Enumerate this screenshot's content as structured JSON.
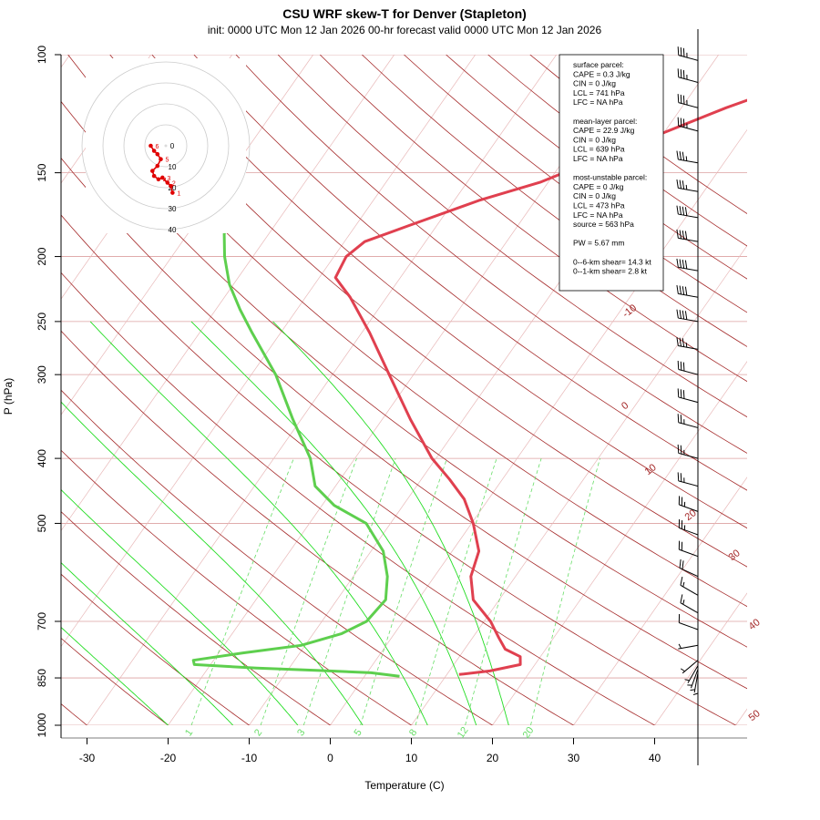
{
  "title": "CSU WRF skew-T for Denver (Stapleton)",
  "subtitle": "init: 0000 UTC Mon 12 Jan 2026    00-hr forecast valid 0000 UTC Mon 12 Jan 2026",
  "colors": {
    "temperature": "#e0404f",
    "dewpoint": "#5ecf4e",
    "dry_adiabat": "#a52a2a",
    "isotherm": "#e8b8b8",
    "isobar": "#dca0a0",
    "moist_adiabat": "#22dd22",
    "mixing_ratio": "#66dd66",
    "hodograph": "#e00000",
    "ring": "#cccccc"
  },
  "chart_data": {
    "type": "skew-t",
    "xlabel": "Temperature (C)",
    "ylabel": "P (hPa)",
    "x_ticks": [
      -30,
      -20,
      -10,
      0,
      10,
      20,
      30,
      40
    ],
    "y_ticks": [
      100,
      150,
      200,
      250,
      300,
      400,
      500,
      700,
      850,
      1000
    ],
    "xlim": [
      -33,
      45
    ],
    "ylim": [
      1000,
      100
    ],
    "isotherm_labels": [
      "-10",
      "0",
      "10",
      "20",
      "30",
      "40",
      "50"
    ],
    "mixing_ratio_labels": [
      "1",
      "2",
      "3",
      "5",
      "8",
      "12",
      "20"
    ],
    "temperature_profile": [
      {
        "p": 840,
        "t": 11.5
      },
      {
        "p": 830,
        "t": 15.0
      },
      {
        "p": 812,
        "t": 18.2
      },
      {
        "p": 790,
        "t": 17.5
      },
      {
        "p": 770,
        "t": 15.0
      },
      {
        "p": 740,
        "t": 13.2
      },
      {
        "p": 700,
        "t": 10.8
      },
      {
        "p": 650,
        "t": 6.8
      },
      {
        "p": 600,
        "t": 4.5
      },
      {
        "p": 550,
        "t": 3.3
      },
      {
        "p": 500,
        "t": 0.2
      },
      {
        "p": 460,
        "t": -3.0
      },
      {
        "p": 430,
        "t": -6.5
      },
      {
        "p": 400,
        "t": -10.5
      },
      {
        "p": 350,
        "t": -16.5
      },
      {
        "p": 300,
        "t": -23.0
      },
      {
        "p": 260,
        "t": -29.0
      },
      {
        "p": 230,
        "t": -34.5
      },
      {
        "p": 215,
        "t": -38.0
      },
      {
        "p": 200,
        "t": -38.5
      },
      {
        "p": 190,
        "t": -37.5
      },
      {
        "p": 180,
        "t": -33.5
      },
      {
        "p": 165,
        "t": -27.0
      },
      {
        "p": 155,
        "t": -21.0
      },
      {
        "p": 140,
        "t": -14.5
      },
      {
        "p": 120,
        "t": -4.5
      },
      {
        "p": 108,
        "t": 3.5
      }
    ],
    "dewpoint_profile": [
      {
        "p": 845,
        "t": 4.3
      },
      {
        "p": 835,
        "t": 0.5
      },
      {
        "p": 828,
        "t": -6.5
      },
      {
        "p": 822,
        "t": -14.0
      },
      {
        "p": 812,
        "t": -22.0
      },
      {
        "p": 800,
        "t": -22.5
      },
      {
        "p": 780,
        "t": -17.0
      },
      {
        "p": 760,
        "t": -10.5
      },
      {
        "p": 730,
        "t": -6.5
      },
      {
        "p": 700,
        "t": -4.5
      },
      {
        "p": 650,
        "t": -4.0
      },
      {
        "p": 600,
        "t": -5.8
      },
      {
        "p": 550,
        "t": -8.5
      },
      {
        "p": 500,
        "t": -13.0
      },
      {
        "p": 470,
        "t": -18.5
      },
      {
        "p": 440,
        "t": -22.5
      },
      {
        "p": 400,
        "t": -25.5
      },
      {
        "p": 350,
        "t": -31.0
      },
      {
        "p": 300,
        "t": -37.0
      },
      {
        "p": 260,
        "t": -43.5
      },
      {
        "p": 240,
        "t": -47.0
      },
      {
        "p": 220,
        "t": -50.5
      },
      {
        "p": 200,
        "t": -53.5
      },
      {
        "p": 185,
        "t": -55.5
      },
      {
        "p": 175,
        "t": -56.0
      }
    ],
    "info_box": [
      "surface parcel:",
      "CAPE = 0.3 J/kg",
      "CIN = 0 J/kg",
      "LCL = 741 hPa",
      "LFC = NA hPa",
      "",
      "mean-layer parcel:",
      "CAPE = 22.9 J/kg",
      "CIN = 0 J/kg",
      "LCL = 639 hPa",
      "LFC = NA hPa",
      "",
      "most-unstable parcel:",
      "CAPE = 0 J/kg",
      "CIN = 0 J/kg",
      "LCL = 473 hPa",
      "LFC = NA hPa",
      "source = 563 hPa",
      "",
      "PW =  5.67 mm",
      "",
      "0--6-km shear= 14.3 kt",
      "0--1-km shear= 2.8 kt"
    ],
    "hodograph": {
      "ring_labels": [
        "0",
        "10",
        "20",
        "30",
        "40"
      ],
      "points": [
        {
          "u": 2,
          "v": 14,
          "label": "1"
        },
        {
          "u": 1.5,
          "v": 12,
          "label": ""
        },
        {
          "u": 0.5,
          "v": 11,
          "label": "2"
        },
        {
          "u": -1,
          "v": 9.5,
          "label": "3"
        },
        {
          "u": -2.2,
          "v": 10,
          "label": "4"
        },
        {
          "u": -3.5,
          "v": 9,
          "label": ""
        },
        {
          "u": -4,
          "v": 7.5,
          "label": ""
        },
        {
          "u": -2.5,
          "v": 6,
          "label": ""
        },
        {
          "u": -1.5,
          "v": 4,
          "label": "5"
        },
        {
          "u": -2.5,
          "v": 2.5,
          "label": ""
        },
        {
          "u": -3.5,
          "v": 1.5,
          "label": ""
        },
        {
          "u": -4.5,
          "v": 0,
          "label": "6"
        }
      ]
    },
    "wind_barbs": [
      {
        "p": 845,
        "speed": 5,
        "dir": 180
      },
      {
        "p": 835,
        "speed": 5,
        "dir": 190
      },
      {
        "p": 825,
        "speed": 5,
        "dir": 200
      },
      {
        "p": 815,
        "speed": 5,
        "dir": 210
      },
      {
        "p": 800,
        "speed": 5,
        "dir": 230
      },
      {
        "p": 760,
        "speed": 5,
        "dir": 260
      },
      {
        "p": 720,
        "speed": 10,
        "dir": 290
      },
      {
        "p": 680,
        "speed": 15,
        "dir": 300
      },
      {
        "p": 640,
        "speed": 15,
        "dir": 300
      },
      {
        "p": 600,
        "speed": 20,
        "dir": 295
      },
      {
        "p": 560,
        "speed": 20,
        "dir": 290
      },
      {
        "p": 520,
        "speed": 25,
        "dir": 290
      },
      {
        "p": 480,
        "speed": 25,
        "dir": 290
      },
      {
        "p": 440,
        "speed": 25,
        "dir": 285
      },
      {
        "p": 400,
        "speed": 25,
        "dir": 285
      },
      {
        "p": 360,
        "speed": 25,
        "dir": 285
      },
      {
        "p": 330,
        "speed": 30,
        "dir": 285
      },
      {
        "p": 300,
        "speed": 30,
        "dir": 285
      },
      {
        "p": 275,
        "speed": 35,
        "dir": 280
      },
      {
        "p": 250,
        "speed": 40,
        "dir": 280
      },
      {
        "p": 230,
        "speed": 40,
        "dir": 280
      },
      {
        "p": 210,
        "speed": 40,
        "dir": 280
      },
      {
        "p": 190,
        "speed": 40,
        "dir": 280
      },
      {
        "p": 175,
        "speed": 40,
        "dir": 280
      },
      {
        "p": 160,
        "speed": 35,
        "dir": 280
      },
      {
        "p": 145,
        "speed": 35,
        "dir": 280
      },
      {
        "p": 130,
        "speed": 35,
        "dir": 285
      },
      {
        "p": 120,
        "speed": 35,
        "dir": 285
      },
      {
        "p": 110,
        "speed": 35,
        "dir": 285
      },
      {
        "p": 102,
        "speed": 35,
        "dir": 285
      }
    ]
  }
}
